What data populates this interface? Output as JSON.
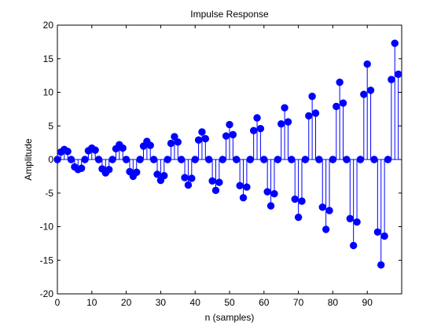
{
  "chart_data": {
    "type": "stem",
    "title": "Impulse Response",
    "xlabel": "n (samples)",
    "ylabel": "Amplitude",
    "xlim": [
      0,
      100
    ],
    "ylim": [
      -20,
      20
    ],
    "xticks": [
      0,
      10,
      20,
      30,
      40,
      50,
      60,
      70,
      80,
      90
    ],
    "yticks": [
      -20,
      -15,
      -10,
      -5,
      0,
      5,
      10,
      15,
      20
    ],
    "grid": false,
    "legend": "none",
    "series": [
      {
        "color": "#0000ff",
        "x": [
          0,
          1,
          2,
          3,
          4,
          5,
          6,
          7,
          8,
          9,
          10,
          11,
          12,
          13,
          14,
          15,
          16,
          17,
          18,
          19,
          20,
          21,
          22,
          23,
          24,
          25,
          26,
          27,
          28,
          29,
          30,
          31,
          32,
          33,
          34,
          35,
          36,
          37,
          38,
          39,
          40,
          41,
          42,
          43,
          44,
          45,
          46,
          47,
          48,
          49,
          50,
          51,
          52,
          53,
          54,
          55,
          56,
          57,
          58,
          59,
          60,
          61,
          62,
          63,
          64,
          65,
          66,
          67,
          68,
          69,
          70,
          71,
          72,
          73,
          74,
          75,
          76,
          77,
          78,
          79,
          80,
          81,
          82,
          83,
          84,
          85,
          86,
          87,
          88,
          89,
          90,
          91,
          92,
          93,
          94,
          95,
          96,
          97,
          98,
          99
        ],
        "y": [
          0,
          1.1,
          1.5,
          1.2,
          0,
          -1.1,
          -1.5,
          -1.3,
          0,
          1.3,
          1.7,
          1.4,
          0,
          -1.4,
          -2.0,
          -1.5,
          0,
          1.6,
          2.2,
          1.7,
          0,
          -1.8,
          -2.5,
          -1.9,
          0,
          2.0,
          2.7,
          2.1,
          0,
          -2.2,
          -3.1,
          -2.4,
          0,
          2.4,
          3.4,
          2.6,
          0,
          -2.7,
          -3.8,
          -2.8,
          0,
          2.9,
          4.1,
          3.1,
          0,
          -3.2,
          -4.6,
          -3.4,
          0,
          3.5,
          5.2,
          3.7,
          0,
          -3.9,
          -5.7,
          -4.1,
          0,
          4.3,
          6.2,
          4.6,
          0,
          -4.8,
          -6.9,
          -5.1,
          0,
          5.3,
          7.7,
          5.6,
          0,
          -5.9,
          -8.6,
          -6.2,
          0,
          6.5,
          9.4,
          6.9,
          0,
          -7.1,
          -10.4,
          -7.6,
          0,
          7.9,
          11.5,
          8.4,
          0,
          -8.8,
          -12.8,
          -9.3,
          0,
          9.7,
          14.2,
          10.3,
          0,
          -10.8,
          -15.7,
          -11.4,
          0,
          11.9,
          17.3,
          12.7
        ]
      }
    ]
  }
}
